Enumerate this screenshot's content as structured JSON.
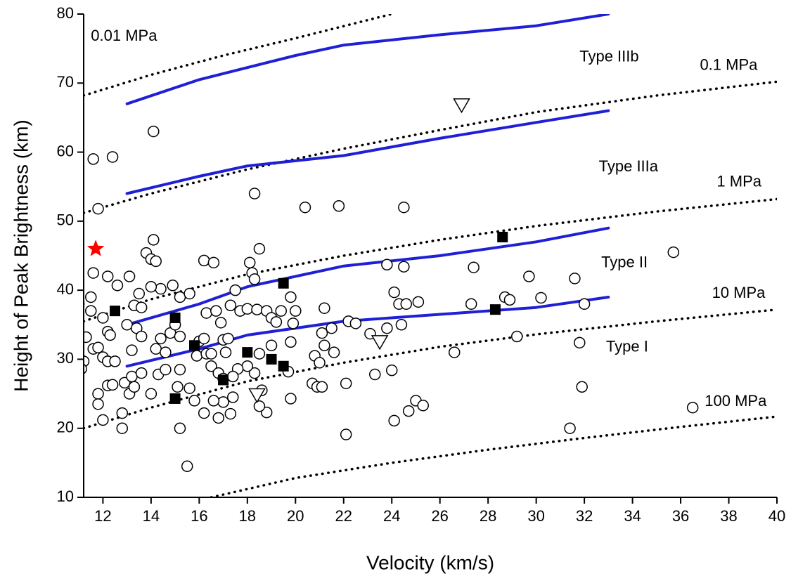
{
  "chart_data": {
    "type": "scatter",
    "x_label": "Velocity (km/s)",
    "y_label": "Height of Peak Brightness (km)",
    "xlim": [
      11.2,
      40
    ],
    "ylim": [
      10,
      80
    ],
    "xticks": [
      12,
      14,
      16,
      18,
      20,
      22,
      24,
      26,
      28,
      30,
      32,
      34,
      36,
      38,
      40
    ],
    "yticks": [
      10,
      20,
      30,
      40,
      50,
      60,
      70,
      80
    ],
    "series": [
      {
        "mode": "line",
        "style": "dotted",
        "color": "#000000",
        "x": [
          11.2,
          14,
          17,
          20,
          24
        ],
        "y": [
          68.2,
          71.2,
          74,
          76.5,
          80
        ]
      },
      {
        "mode": "line",
        "style": "dotted",
        "color": "#000000",
        "x": [
          11.2,
          14,
          18,
          22,
          26,
          30,
          35,
          40
        ],
        "y": [
          51.2,
          54,
          57.5,
          60.5,
          63.2,
          65.8,
          68.2,
          70.2
        ]
      },
      {
        "mode": "line",
        "style": "dotted",
        "color": "#000000",
        "x": [
          11.2,
          14,
          18,
          22,
          26,
          30,
          35,
          40
        ],
        "y": [
          35.5,
          38.7,
          42.3,
          45,
          47.3,
          49.3,
          51.4,
          53.2
        ]
      },
      {
        "mode": "line",
        "style": "dotted",
        "color": "#000000",
        "x": [
          11.2,
          14,
          18,
          22,
          26,
          30,
          35,
          40
        ],
        "y": [
          20,
          23,
          26.8,
          29.5,
          31.8,
          33.6,
          35.5,
          37.2
        ]
      },
      {
        "mode": "line",
        "style": "dotted",
        "color": "#000000",
        "x": [
          16.5,
          20,
          24,
          28,
          32,
          36,
          40
        ],
        "y": [
          10,
          12.8,
          15,
          16.9,
          18.6,
          20.2,
          21.7
        ]
      },
      {
        "mode": "line",
        "style": "solid",
        "color": "#1f1fd6",
        "x": [
          13,
          16,
          20,
          22,
          26,
          30,
          33
        ],
        "y": [
          67,
          70.5,
          74,
          75.5,
          77,
          78.3,
          80
        ]
      },
      {
        "mode": "line",
        "style": "solid",
        "color": "#1f1fd6",
        "x": [
          13,
          16,
          18,
          22,
          26,
          30,
          33
        ],
        "y": [
          54,
          56.5,
          58,
          59.5,
          62,
          64.3,
          66
        ]
      },
      {
        "mode": "line",
        "style": "solid",
        "color": "#1f1fd6",
        "x": [
          13,
          16,
          18,
          22,
          26,
          30,
          33
        ],
        "y": [
          35,
          38,
          40.5,
          43.5,
          45,
          47,
          49
        ]
      },
      {
        "mode": "line",
        "style": "solid",
        "color": "#1f1fd6",
        "x": [
          13,
          16,
          18,
          22,
          26,
          28,
          30,
          33
        ],
        "y": [
          29,
          31.5,
          33.5,
          35.5,
          36.5,
          37,
          37.5,
          39
        ]
      },
      {
        "mode": "marker",
        "marker": "circle",
        "color": "#ffffff",
        "x": [
          11.6,
          12.4,
          11.8,
          14.1,
          13.8,
          14.1,
          14.0,
          14.2,
          14.4,
          14.0,
          12.2,
          11.6,
          13.1,
          12.6,
          11.5,
          11.0,
          11.5,
          12.0,
          11.3,
          11.6,
          11.2,
          11.1,
          11.8,
          12.2,
          12.3,
          12.0,
          12.2,
          11.8,
          11.8,
          12.2,
          12.4,
          12.0,
          12.5,
          12.8,
          12.8,
          12.9,
          13.2,
          13.2,
          13.0,
          13.4,
          13.6,
          13.3,
          13.5,
          13.6,
          13.1,
          13.3,
          13.6,
          14.0,
          14.3,
          14.6,
          14.2,
          14.6,
          14.4,
          14.8,
          15.2,
          15.0,
          14.9,
          15.2,
          15.6,
          15.2,
          15.1,
          15.6,
          15.8,
          15.2,
          15.5,
          15.9,
          16.0,
          16.3,
          16.2,
          16.5,
          16.3,
          16.2,
          16.6,
          16.7,
          16.9,
          17.0,
          17.1,
          17.2,
          16.5,
          16.8,
          17.0,
          17.0,
          16.6,
          16.8,
          16.2,
          17.3,
          17.5,
          17.7,
          18.0,
          18.1,
          18.2,
          18.5,
          18.3,
          18.4,
          18.8,
          19.0,
          19.2,
          19.4,
          19.8,
          19.9,
          20.0,
          19.8,
          19.0,
          18.5,
          18.3,
          18.6,
          18.8,
          18.5,
          18.0,
          17.6,
          17.4,
          17.3,
          17.4,
          19.7,
          19.8,
          20.4,
          21.8,
          24.5,
          18.3,
          21.2,
          21.5,
          21.1,
          21.6,
          21.2,
          20.8,
          21.0,
          20.7,
          20.9,
          21.1,
          22.2,
          22.5,
          22.1,
          22.1,
          23.1,
          23.3,
          23.8,
          23.8,
          24.5,
          24.1,
          24.3,
          24.6,
          25.1,
          24.4,
          24.0,
          24.1,
          24.7,
          25.0,
          25.3,
          26.6,
          27.4,
          27.3,
          28.7,
          28.9,
          29.2,
          29.7,
          30.2,
          31.6,
          31.8,
          31.9,
          32.0,
          31.4,
          35.7,
          36.5
        ],
        "y": [
          59,
          59.3,
          51.8,
          63,
          45.4,
          47.3,
          44.5,
          44.2,
          40.2,
          40.5,
          42,
          42.5,
          42,
          40.7,
          39,
          38,
          37,
          36,
          33.2,
          31.5,
          29.7,
          28.6,
          31.7,
          34,
          33.5,
          30.3,
          29.7,
          25,
          23.5,
          26.2,
          26.3,
          21.2,
          29.7,
          20,
          22.2,
          26.6,
          27.5,
          31.3,
          35,
          34.5,
          33.3,
          37.8,
          39.5,
          37.5,
          25,
          26,
          28,
          25,
          27.8,
          28.5,
          31.5,
          31,
          33,
          33.8,
          33.3,
          35,
          40.7,
          39,
          39.5,
          28.5,
          26,
          25.8,
          24,
          20,
          14.5,
          30.5,
          32.6,
          30.8,
          33,
          30.8,
          36.7,
          44.3,
          44,
          37,
          35.3,
          32.8,
          31,
          33,
          29,
          28,
          27.2,
          23.8,
          24,
          21.5,
          22.2,
          37.8,
          40,
          37,
          37.3,
          44,
          42.5,
          46,
          41.6,
          37.2,
          37,
          36,
          35.4,
          37,
          39,
          35.2,
          37,
          32.5,
          32,
          30.8,
          28,
          25.5,
          22.3,
          23.2,
          29,
          28.6,
          27.5,
          22.1,
          24.5,
          28.2,
          24.3,
          52,
          52.2,
          52,
          54,
          37.4,
          34.5,
          33.8,
          31,
          32,
          30.5,
          29.5,
          26.5,
          26,
          26,
          35.5,
          35.2,
          26.5,
          19.1,
          33.7,
          27.8,
          34.5,
          43.7,
          43.4,
          39.7,
          38,
          38,
          38.3,
          35,
          28.4,
          21.1,
          22.5,
          24,
          23.3,
          31,
          43.3,
          38,
          39,
          38.6,
          33.3,
          42,
          38.9,
          41.7,
          32.4,
          26,
          38,
          20,
          45.5,
          23
        ]
      },
      {
        "mode": "marker",
        "marker": "square",
        "color": "#000000",
        "x": [
          12.5,
          15,
          15,
          15.8,
          17,
          18,
          19,
          19.5,
          19.5,
          28.3,
          28.6
        ],
        "y": [
          37,
          36,
          24.3,
          32,
          27,
          31,
          30,
          29,
          41,
          37.2,
          47.7
        ]
      },
      {
        "mode": "marker",
        "marker": "triangle-down",
        "color": "#ffffff",
        "x": [
          26.9,
          23.5,
          18.4
        ],
        "y": [
          66.8,
          32.5,
          24.8
        ]
      },
      {
        "mode": "marker",
        "marker": "star",
        "color": "#ff0000",
        "x": [
          11.7
        ],
        "y": [
          46
        ]
      }
    ],
    "annotations": [
      {
        "text": "0.01 MPa",
        "x": 11.5,
        "y": 76.7
      },
      {
        "text": "Type IIIb",
        "x": 31.8,
        "y": 73.7
      },
      {
        "text": "0.1 MPa",
        "x": 36.8,
        "y": 72.5
      },
      {
        "text": "Type IIIa",
        "x": 32.6,
        "y": 57.8
      },
      {
        "text": "1 MPa",
        "x": 37.5,
        "y": 55.6
      },
      {
        "text": "Type II",
        "x": 32.7,
        "y": 43.9
      },
      {
        "text": "10 MPa",
        "x": 37.3,
        "y": 39.5
      },
      {
        "text": "Type I",
        "x": 32.9,
        "y": 31.7
      },
      {
        "text": "100 MPa",
        "x": 37.0,
        "y": 23.8
      }
    ]
  }
}
